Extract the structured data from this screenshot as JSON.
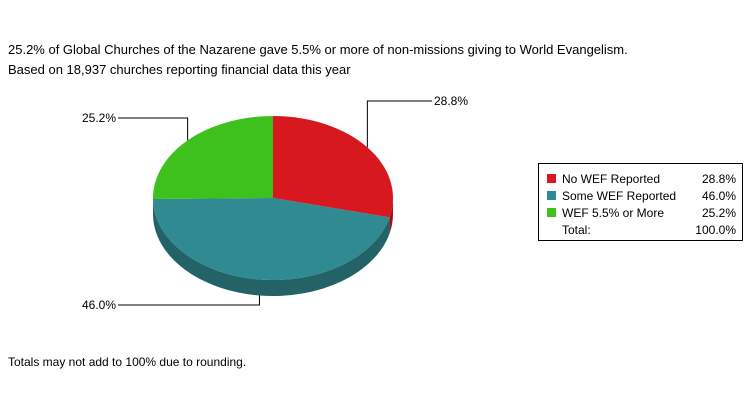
{
  "title_line1": "25.2% of Global Churches of the Nazarene gave 5.5% or more of non-missions giving to World Evangelism.",
  "title_line2": "Based on 18,937 churches reporting financial data this year",
  "footnote": "Totals may not add to 100% due to rounding.",
  "chart_data": {
    "type": "pie",
    "style": "3d",
    "series": [
      {
        "name": "No WEF Reported",
        "value": 28.8,
        "label": "28.8%",
        "color": "#d7181f"
      },
      {
        "name": "Some WEF Reported",
        "value": 46.0,
        "label": "46.0%",
        "color": "#308a91"
      },
      {
        "name": "WEF 5.5% or More",
        "value": 25.2,
        "label": "25.2%",
        "color": "#3fc11d"
      }
    ],
    "legend_position": "right",
    "total_label": "Total:",
    "total_value": "100.0%"
  }
}
